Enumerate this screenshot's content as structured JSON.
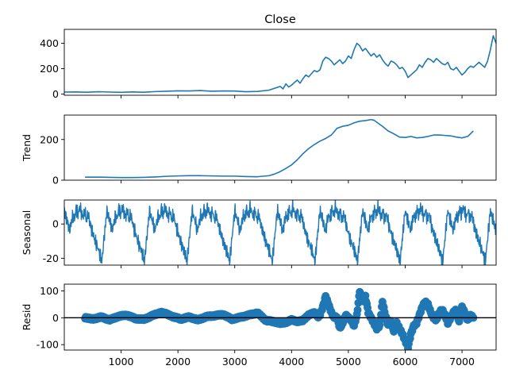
{
  "chart_data": [
    {
      "type": "line",
      "title": "Close",
      "ylabel": "",
      "xlim": [
        0,
        7600
      ],
      "ylim": [
        -10,
        510
      ],
      "yticks": [
        0,
        200,
        400
      ],
      "xticks": [
        1000,
        2000,
        3000,
        4000,
        5000,
        6000,
        7000
      ],
      "show_xtick_labels": false,
      "color": "#1f77b4",
      "series": [
        {
          "x": [
            0,
            200,
            400,
            600,
            800,
            1000,
            1200,
            1400,
            1600,
            1800,
            2000,
            2200,
            2400,
            2600,
            2800,
            3000,
            3200,
            3400,
            3600,
            3700,
            3800,
            3850,
            3900,
            3950,
            4000,
            4050,
            4100,
            4150,
            4200,
            4250,
            4300,
            4350,
            4400,
            4450,
            4500,
            4550,
            4600,
            4650,
            4700,
            4750,
            4800,
            4850,
            4900,
            4950,
            5000,
            5050,
            5100,
            5150,
            5200,
            5250,
            5300,
            5350,
            5400,
            5450,
            5500,
            5550,
            5600,
            5650,
            5700,
            5750,
            5800,
            5850,
            5900,
            5950,
            6000,
            6050,
            6100,
            6150,
            6200,
            6250,
            6300,
            6350,
            6400,
            6450,
            6500,
            6550,
            6600,
            6650,
            6700,
            6750,
            6800,
            6850,
            6900,
            6950,
            7000,
            7050,
            7100,
            7150,
            7200,
            7250,
            7300,
            7350,
            7400,
            7450,
            7500,
            7550,
            7600
          ],
          "y": [
            15,
            16,
            14,
            18,
            15,
            13,
            16,
            14,
            19,
            22,
            25,
            24,
            27,
            22,
            24,
            23,
            18,
            20,
            30,
            45,
            60,
            40,
            80,
            55,
            70,
            90,
            110,
            85,
            120,
            150,
            135,
            160,
            185,
            175,
            190,
            260,
            290,
            280,
            260,
            230,
            250,
            270,
            240,
            260,
            300,
            280,
            350,
            400,
            380,
            340,
            360,
            330,
            300,
            320,
            290,
            310,
            270,
            240,
            220,
            260,
            250,
            230,
            200,
            210,
            180,
            130,
            150,
            170,
            190,
            230,
            210,
            250,
            280,
            270,
            250,
            280,
            260,
            240,
            230,
            250,
            200,
            190,
            210,
            180,
            150,
            170,
            200,
            220,
            210,
            230,
            250,
            230,
            210,
            260,
            350,
            460,
            400
          ]
        }
      ]
    },
    {
      "type": "line",
      "title": "",
      "ylabel": "Trend",
      "xlim": [
        0,
        7600
      ],
      "ylim": [
        0,
        320
      ],
      "yticks": [
        0,
        200
      ],
      "xticks": [
        1000,
        2000,
        3000,
        4000,
        5000,
        6000,
        7000
      ],
      "show_xtick_labels": false,
      "color": "#1f77b4",
      "series": [
        {
          "x": [
            365,
            600,
            800,
            1000,
            1200,
            1400,
            1600,
            1800,
            2000,
            2200,
            2400,
            2600,
            2800,
            3000,
            3200,
            3400,
            3600,
            3700,
            3800,
            3900,
            4000,
            4100,
            4200,
            4300,
            4400,
            4500,
            4600,
            4700,
            4800,
            4900,
            5000,
            5100,
            5200,
            5300,
            5400,
            5450,
            5500,
            5600,
            5700,
            5800,
            5900,
            6000,
            6100,
            6200,
            6300,
            6400,
            6500,
            6600,
            6700,
            6800,
            6900,
            7000,
            7100,
            7200
          ],
          "y": [
            15,
            15,
            14,
            13,
            13,
            14,
            16,
            19,
            21,
            22,
            22,
            21,
            20,
            20,
            18,
            17,
            22,
            30,
            42,
            58,
            75,
            100,
            130,
            155,
            175,
            192,
            205,
            222,
            255,
            265,
            270,
            282,
            290,
            293,
            298,
            295,
            285,
            265,
            242,
            228,
            212,
            210,
            215,
            208,
            210,
            215,
            222,
            222,
            220,
            218,
            212,
            208,
            215,
            242
          ]
        }
      ]
    },
    {
      "type": "line",
      "title": "",
      "ylabel": "Seasonal",
      "xlim": [
        0,
        7600
      ],
      "ylim": [
        -24,
        14
      ],
      "yticks": [
        -20,
        0
      ],
      "xticks": [
        1000,
        2000,
        3000,
        4000,
        5000,
        6000,
        7000
      ],
      "show_xtick_labels": false,
      "color": "#1f77b4",
      "period": 750,
      "profile": [
        [
          0,
          8
        ],
        [
          0.04,
          4
        ],
        [
          0.08,
          1
        ],
        [
          0.12,
          -4
        ],
        [
          0.16,
          0
        ],
        [
          0.2,
          5
        ],
        [
          0.24,
          3
        ],
        [
          0.28,
          9
        ],
        [
          0.32,
          5
        ],
        [
          0.36,
          10
        ],
        [
          0.4,
          7
        ],
        [
          0.44,
          4
        ],
        [
          0.48,
          8
        ],
        [
          0.52,
          2
        ],
        [
          0.56,
          6
        ],
        [
          0.6,
          1
        ],
        [
          0.64,
          -3
        ],
        [
          0.68,
          -6
        ],
        [
          0.72,
          -10
        ],
        [
          0.76,
          -12
        ],
        [
          0.8,
          -15
        ],
        [
          0.84,
          -18
        ],
        [
          0.88,
          -22
        ],
        [
          0.92,
          -12
        ],
        [
          0.96,
          -2
        ],
        [
          1.0,
          8
        ]
      ]
    },
    {
      "type": "scatter",
      "title": "",
      "ylabel": "Resid",
      "xlim": [
        0,
        7600
      ],
      "ylim": [
        -120,
        125
      ],
      "yticks": [
        -100,
        0,
        100
      ],
      "xticks": [
        1000,
        2000,
        3000,
        4000,
        5000,
        6000,
        7000
      ],
      "xtick_labels": [
        "1000",
        "2000",
        "3000",
        "4000",
        "5000",
        "6000",
        "7000"
      ],
      "show_xtick_labels": true,
      "baseline": 0,
      "color": "#1f77b4",
      "series": [
        {
          "x": [
            365,
            500,
            650,
            800,
            950,
            1100,
            1250,
            1400,
            1550,
            1700,
            1800,
            1900,
            2050,
            2200,
            2350,
            2500,
            2650,
            2800,
            2950,
            3100,
            3250,
            3400,
            3550,
            3700,
            3800,
            3900,
            4000,
            4100,
            4200,
            4300,
            4400,
            4480,
            4550,
            4600,
            4650,
            4700,
            4750,
            4800,
            4850,
            4900,
            4950,
            5000,
            5050,
            5100,
            5150,
            5200,
            5250,
            5300,
            5350,
            5400,
            5450,
            5500,
            5550,
            5600,
            5650,
            5700,
            5750,
            5800,
            5850,
            5900,
            5950,
            6000,
            6050,
            6100,
            6150,
            6200,
            6250,
            6300,
            6350,
            6400,
            6450,
            6500,
            6550,
            6600,
            6650,
            6700,
            6750,
            6800,
            6850,
            6900,
            6950,
            7000,
            7050,
            7100,
            7150,
            7200
          ],
          "y": [
            0,
            -5,
            3,
            -8,
            5,
            10,
            -3,
            -6,
            8,
            20,
            15,
            5,
            -5,
            3,
            -8,
            4,
            8,
            12,
            -6,
            2,
            10,
            18,
            -10,
            -15,
            -20,
            -18,
            -8,
            -15,
            -10,
            10,
            20,
            0,
            40,
            80,
            50,
            20,
            0,
            5,
            -40,
            -20,
            10,
            0,
            -10,
            -30,
            10,
            100,
            60,
            80,
            20,
            0,
            -20,
            -40,
            -30,
            60,
            10,
            -30,
            -10,
            -50,
            -20,
            -40,
            -60,
            -85,
            -110,
            -60,
            -30,
            -20,
            10,
            40,
            60,
            50,
            20,
            0,
            -10,
            20,
            30,
            10,
            -20,
            0,
            20,
            30,
            -15,
            40,
            20,
            -10,
            10,
            0
          ]
        }
      ]
    }
  ]
}
